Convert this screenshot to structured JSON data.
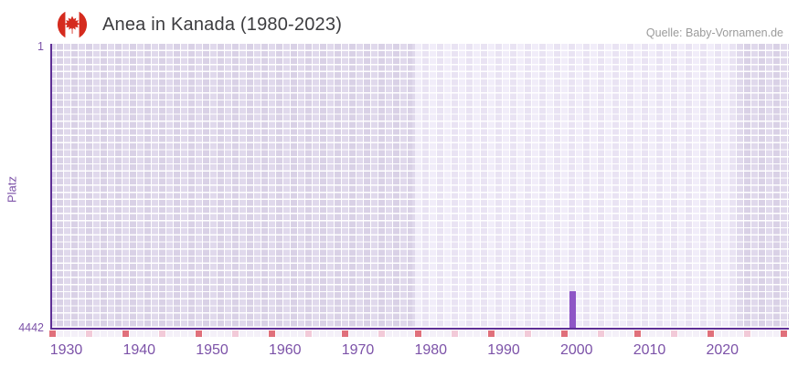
{
  "header": {
    "title": "Anea in Kanada (1980-2023)",
    "flag_icon": "canada-flag",
    "source": "Quelle: Baby-Vornamen.de"
  },
  "chart_data": {
    "type": "bar",
    "title": "Anea in Kanada (1980-2023)",
    "ylabel": "Platz",
    "xlabel": "",
    "y_axis": {
      "top_tick_label": "1",
      "bottom_tick_label": "4442",
      "min": 1,
      "max": 4442,
      "inverted": true
    },
    "x_axis": {
      "start_year": 1930,
      "end_year": 2030,
      "tick_labels": [
        "1930",
        "1940",
        "1950",
        "1960",
        "1970",
        "1980",
        "1990",
        "2000",
        "2010",
        "2020"
      ],
      "decade_marker_years_step": 10,
      "half_decade_marker_years_step": 5
    },
    "data_range": {
      "start": 1980,
      "end": 2023
    },
    "series": [
      {
        "name": "Anea",
        "points": [
          {
            "year": 2000,
            "rank": 3870
          }
        ]
      }
    ],
    "legend": "none",
    "grid": true,
    "colors": {
      "bar": "#8e56c6",
      "axis": "#5e2f96",
      "tick_label": "#7c52a8",
      "cell_light_a": "#f1edf9",
      "cell_light_b": "#e9e3f3",
      "cell_dark_a": "#e0d9ec",
      "cell_dark_b": "#d9d1e6",
      "marker_decade": "#e0707b",
      "marker_half_decade": "#f2cad8",
      "marker_default": "#f4f0f8",
      "flag_red": "#d52b1e",
      "title_text": "#3c3c3f",
      "source_text": "#9b9b9b"
    }
  }
}
